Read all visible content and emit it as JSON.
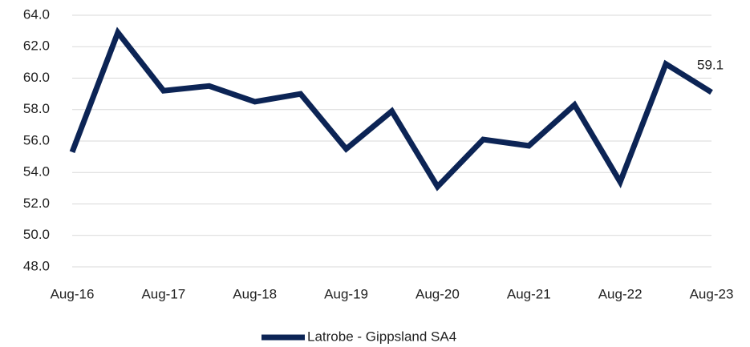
{
  "chart_data": {
    "type": "line",
    "categories": [
      "Aug-16",
      null,
      "Aug-17",
      null,
      "Aug-18",
      null,
      "Aug-19",
      null,
      "Aug-20",
      null,
      "Aug-21",
      null,
      "Aug-22",
      null,
      "Aug-23"
    ],
    "series": [
      {
        "name": "Latrobe - Gippsland SA4",
        "color": "#0c2455",
        "values": [
          55.3,
          62.9,
          59.2,
          59.5,
          58.5,
          59.0,
          55.5,
          57.9,
          53.1,
          56.1,
          55.7,
          58.3,
          53.4,
          60.9,
          59.1
        ],
        "value_labels": [
          null,
          null,
          null,
          null,
          null,
          null,
          null,
          null,
          null,
          null,
          null,
          null,
          null,
          null,
          "59.1"
        ]
      }
    ],
    "ylim": [
      48,
      64
    ],
    "yticks": [
      {
        "value": 48,
        "label": "48.0"
      },
      {
        "value": 50,
        "label": "50.0"
      },
      {
        "value": 52,
        "label": "52.0"
      },
      {
        "value": 54,
        "label": "54.0"
      },
      {
        "value": 56,
        "label": "56.0"
      },
      {
        "value": 58,
        "label": "58.0"
      },
      {
        "value": 60,
        "label": "60.0"
      },
      {
        "value": 62,
        "label": "62.0"
      },
      {
        "value": 64,
        "label": "64.0"
      }
    ],
    "grid": true,
    "legend": "bottom"
  }
}
